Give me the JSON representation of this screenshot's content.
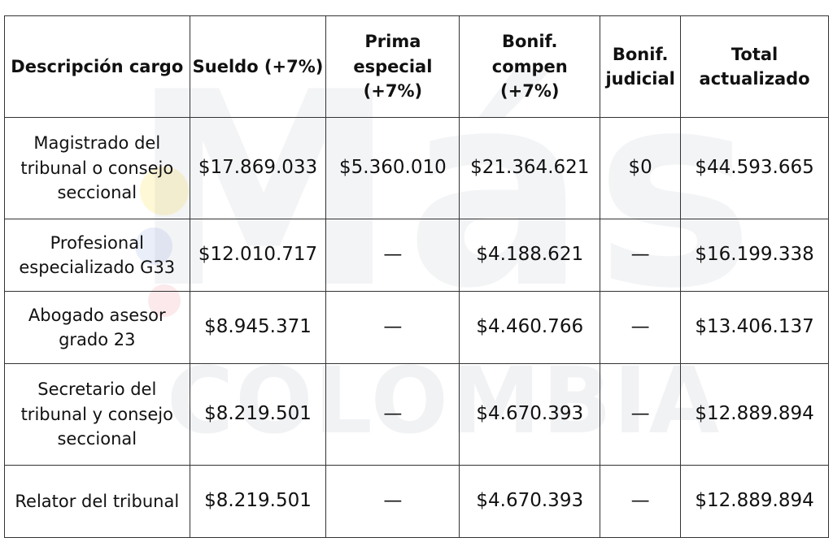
{
  "table": {
    "headers": {
      "descripcion": "Descripción cargo",
      "sueldo": "Sueldo (+7%)",
      "prima": "Prima especial (+7%)",
      "bonif_compen": "Bonif. compen (+7%)",
      "bonif_judicial": "Bonif. judicial",
      "total": "Total actualizado"
    },
    "rows": [
      {
        "descripcion": "Magistrado del tribunal o consejo seccional",
        "sueldo": "$17.869.033",
        "prima": "$5.360.010",
        "bonif_compen": "$21.364.621",
        "bonif_judicial": "$0",
        "total": "$44.593.665"
      },
      {
        "descripcion": "Profesional especializado G33",
        "sueldo": "$12.010.717",
        "prima": "—",
        "bonif_compen": "$4.188.621",
        "bonif_judicial": "—",
        "total": "$16.199.338"
      },
      {
        "descripcion": "Abogado asesor grado 23",
        "sueldo": "$8.945.371",
        "prima": "—",
        "bonif_compen": "$4.460.766",
        "bonif_judicial": "—",
        "total": "$13.406.137"
      },
      {
        "descripcion": "Secretario del tribunal y consejo seccional",
        "sueldo": "$8.219.501",
        "prima": "—",
        "bonif_compen": "$4.670.393",
        "bonif_judicial": "—",
        "total": "$12.889.894"
      },
      {
        "descripcion": "Relator del tribunal",
        "sueldo": "$8.219.501",
        "prima": "—",
        "bonif_compen": "$4.670.393",
        "bonif_judicial": "—",
        "total": "$12.889.894"
      }
    ]
  },
  "watermark": {
    "brand_top": "Más",
    "brand_bottom": "COLOMBIA",
    "dot_colors": [
      "#FFD600",
      "#285AC8",
      "#DC283C"
    ]
  }
}
